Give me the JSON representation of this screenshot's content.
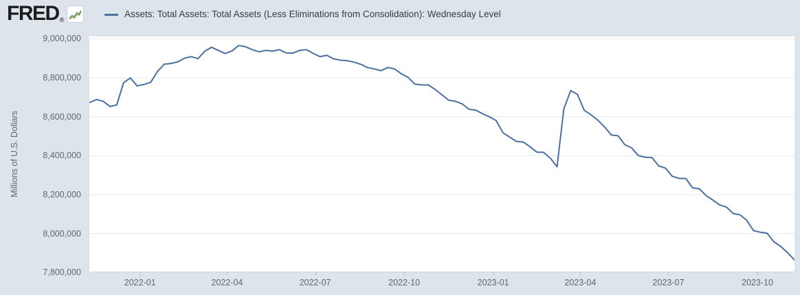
{
  "header": {
    "logo_text": "FRED",
    "logo_registered": "®",
    "legend": {
      "series_label": "Assets: Total Assets: Total Assets (Less Eliminations from Consolidation): Wednesday Level",
      "series_color": "#4a6fa1"
    }
  },
  "y_axis": {
    "title": "Millions of U.S. Dollars",
    "ticks": [
      "9,000,000",
      "8,800,000",
      "8,600,000",
      "8,400,000",
      "8,200,000",
      "8,000,000",
      "7,800,000"
    ],
    "tick_values": [
      9000000,
      8800000,
      8600000,
      8400000,
      8200000,
      8000000,
      7800000
    ]
  },
  "x_axis": {
    "ticks": [
      "2022-01",
      "2022-04",
      "2022-07",
      "2022-10",
      "2023-01",
      "2023-04",
      "2023-07",
      "2023-10"
    ]
  },
  "chart_data": {
    "type": "line",
    "title": "Assets: Total Assets: Total Assets (Less Eliminations from Consolidation): Wednesday Level",
    "ylabel": "Millions of U.S. Dollars",
    "ylim": [
      7800000,
      9000000
    ],
    "grid": "horizontal",
    "legend_position": "top",
    "x_tick_labels": [
      "2022-01",
      "2022-04",
      "2022-07",
      "2022-10",
      "2023-01",
      "2023-04",
      "2023-07",
      "2023-10"
    ],
    "series": [
      {
        "name": "Assets: Total Assets: Total Assets (Less Eliminations from Consolidation): Wednesday Level",
        "color": "#4a6fa1",
        "x": [
          "2021-11-10",
          "2021-11-17",
          "2021-11-24",
          "2021-12-01",
          "2021-12-08",
          "2021-12-15",
          "2021-12-22",
          "2021-12-29",
          "2022-01-05",
          "2022-01-12",
          "2022-01-19",
          "2022-01-26",
          "2022-02-02",
          "2022-02-09",
          "2022-02-16",
          "2022-02-23",
          "2022-03-02",
          "2022-03-09",
          "2022-03-16",
          "2022-03-23",
          "2022-03-30",
          "2022-04-06",
          "2022-04-13",
          "2022-04-20",
          "2022-04-27",
          "2022-05-04",
          "2022-05-11",
          "2022-05-18",
          "2022-05-25",
          "2022-06-01",
          "2022-06-08",
          "2022-06-15",
          "2022-06-22",
          "2022-06-29",
          "2022-07-06",
          "2022-07-13",
          "2022-07-20",
          "2022-07-27",
          "2022-08-03",
          "2022-08-10",
          "2022-08-17",
          "2022-08-24",
          "2022-08-31",
          "2022-09-07",
          "2022-09-14",
          "2022-09-21",
          "2022-09-28",
          "2022-10-05",
          "2022-10-12",
          "2022-10-19",
          "2022-10-26",
          "2022-11-02",
          "2022-11-09",
          "2022-11-16",
          "2022-11-23",
          "2022-11-30",
          "2022-12-07",
          "2022-12-14",
          "2022-12-21",
          "2022-12-28",
          "2023-01-04",
          "2023-01-11",
          "2023-01-18",
          "2023-01-25",
          "2023-02-01",
          "2023-02-08",
          "2023-02-15",
          "2023-02-22",
          "2023-03-01",
          "2023-03-08",
          "2023-03-15",
          "2023-03-22",
          "2023-03-29",
          "2023-04-05",
          "2023-04-12",
          "2023-04-19",
          "2023-04-26",
          "2023-05-03",
          "2023-05-10",
          "2023-05-17",
          "2023-05-24",
          "2023-05-31",
          "2023-06-07",
          "2023-06-14",
          "2023-06-21",
          "2023-06-28",
          "2023-07-05",
          "2023-07-12",
          "2023-07-19",
          "2023-07-26",
          "2023-08-02",
          "2023-08-09",
          "2023-08-16",
          "2023-08-23",
          "2023-08-30",
          "2023-09-06",
          "2023-09-13",
          "2023-09-20",
          "2023-09-27",
          "2023-10-04",
          "2023-10-11",
          "2023-10-18",
          "2023-10-25",
          "2023-11-01",
          "2023-11-08"
        ],
        "values": [
          8673000,
          8688000,
          8679000,
          8652000,
          8660000,
          8774000,
          8799000,
          8758000,
          8765000,
          8776000,
          8832000,
          8869000,
          8873000,
          8881000,
          8900000,
          8908000,
          8898000,
          8936000,
          8956000,
          8940000,
          8924000,
          8937000,
          8965000,
          8959000,
          8944000,
          8933000,
          8940000,
          8936000,
          8944000,
          8927000,
          8926000,
          8940000,
          8944000,
          8925000,
          8908000,
          8915000,
          8897000,
          8890000,
          8887000,
          8880000,
          8869000,
          8852000,
          8845000,
          8836000,
          8852000,
          8845000,
          8820000,
          8802000,
          8767000,
          8763000,
          8763000,
          8740000,
          8712000,
          8684000,
          8679000,
          8665000,
          8638000,
          8633000,
          8615000,
          8599000,
          8580000,
          8518000,
          8495000,
          8473000,
          8470000,
          8446000,
          8418000,
          8417000,
          8387000,
          8343000,
          8640000,
          8734000,
          8715000,
          8633000,
          8610000,
          8582000,
          8548000,
          8506000,
          8502000,
          8456000,
          8440000,
          8400000,
          8392000,
          8390000,
          8347000,
          8336000,
          8294000,
          8283000,
          8283000,
          8235000,
          8230000,
          8195000,
          8172000,
          8147000,
          8136000,
          8103000,
          8096000,
          8068000,
          8015000,
          8007000,
          8002000,
          7958000,
          7934000,
          7903000,
          7866000
        ]
      }
    ]
  }
}
